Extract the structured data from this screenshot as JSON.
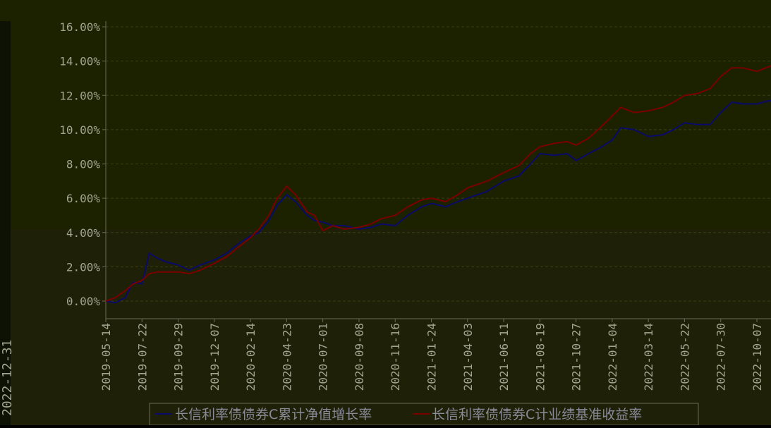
{
  "colors": {
    "background_top": "#1c2200",
    "background_bottom": "#1e2108",
    "left_strip": "#0d1204",
    "grid": "#3a3f12",
    "axis": "#6a6a58",
    "tick_text": "#a2a690",
    "legend_text": "#8a8a9a",
    "series_nav": "#0a0a6a",
    "series_bench": "#7a0000"
  },
  "left_strip": {
    "date_label": "2022-12-31"
  },
  "chart_data": {
    "type": "line",
    "title": "",
    "xlabel": "",
    "ylabel": "",
    "ylim": [
      -0.01,
      0.165
    ],
    "y_ticks": [
      0.0,
      0.02,
      0.04,
      0.06,
      0.08,
      0.1,
      0.12,
      0.14,
      0.16
    ],
    "y_tick_labels": [
      "0.00%",
      "2.00%",
      "4.00%",
      "6.00%",
      "8.00%",
      "10.00%",
      "12.00%",
      "14.00%",
      "16.00%"
    ],
    "x_tick_labels": [
      "2019-05-14",
      "2019-07-22",
      "2019-09-29",
      "2019-12-07",
      "2020-02-14",
      "2020-04-23",
      "2020-07-01",
      "2020-09-08",
      "2020-11-16",
      "2021-01-24",
      "2021-04-03",
      "2021-06-11",
      "2021-08-19",
      "2021-10-27",
      "2022-01-04",
      "2022-03-14",
      "2022-05-22",
      "2022-07-30",
      "2022-10-07"
    ],
    "grid": true,
    "legend_position": "bottom",
    "x": [
      "2019-05-14",
      "2019-06-01",
      "2019-06-20",
      "2019-07-05",
      "2019-07-22",
      "2019-08-05",
      "2019-08-20",
      "2019-09-05",
      "2019-09-29",
      "2019-10-20",
      "2019-11-10",
      "2019-12-07",
      "2019-12-31",
      "2020-01-20",
      "2020-02-14",
      "2020-03-01",
      "2020-03-20",
      "2020-04-05",
      "2020-04-23",
      "2020-05-10",
      "2020-06-01",
      "2020-06-15",
      "2020-07-01",
      "2020-07-20",
      "2020-08-10",
      "2020-09-08",
      "2020-10-01",
      "2020-10-20",
      "2020-11-16",
      "2020-12-10",
      "2021-01-05",
      "2021-01-24",
      "2021-02-20",
      "2021-03-15",
      "2021-04-03",
      "2021-05-10",
      "2021-06-11",
      "2021-07-10",
      "2021-08-01",
      "2021-08-19",
      "2021-09-15",
      "2021-10-10",
      "2021-10-27",
      "2021-11-20",
      "2021-12-15",
      "2022-01-04",
      "2022-01-20",
      "2022-02-15",
      "2022-03-14",
      "2022-04-10",
      "2022-05-01",
      "2022-05-22",
      "2022-06-15",
      "2022-07-10",
      "2022-07-30",
      "2022-08-20",
      "2022-09-10",
      "2022-10-07",
      "2022-11-01",
      "2022-12-10"
    ],
    "series": [
      {
        "name": "长信利率债债券C累计净值增长率",
        "color": "#0a0a6a",
        "values": [
          0.0,
          -0.001,
          0.002,
          0.011,
          0.01,
          0.028,
          0.025,
          0.023,
          0.021,
          0.018,
          0.021,
          0.024,
          0.028,
          0.033,
          0.038,
          0.04,
          0.047,
          0.056,
          0.062,
          0.058,
          0.05,
          0.047,
          0.046,
          0.044,
          0.044,
          0.042,
          0.043,
          0.045,
          0.044,
          0.05,
          0.055,
          0.057,
          0.055,
          0.058,
          0.06,
          0.064,
          0.07,
          0.073,
          0.08,
          0.086,
          0.085,
          0.086,
          0.082,
          0.086,
          0.09,
          0.094,
          0.101,
          0.1,
          0.096,
          0.097,
          0.1,
          0.104,
          0.103,
          0.103,
          0.11,
          0.116,
          0.115,
          0.115,
          0.117,
          0.118
        ]
      },
      {
        "name": "长信利率债债券C计业绩基准收益率",
        "color": "#7a0000",
        "values": [
          0.0,
          0.002,
          0.006,
          0.01,
          0.012,
          0.016,
          0.017,
          0.017,
          0.017,
          0.016,
          0.018,
          0.022,
          0.026,
          0.031,
          0.037,
          0.042,
          0.05,
          0.06,
          0.067,
          0.062,
          0.052,
          0.05,
          0.041,
          0.044,
          0.042,
          0.043,
          0.045,
          0.048,
          0.05,
          0.055,
          0.059,
          0.06,
          0.058,
          0.062,
          0.066,
          0.07,
          0.075,
          0.079,
          0.086,
          0.09,
          0.092,
          0.093,
          0.091,
          0.095,
          0.102,
          0.108,
          0.113,
          0.11,
          0.111,
          0.113,
          0.116,
          0.12,
          0.121,
          0.124,
          0.131,
          0.136,
          0.136,
          0.134,
          0.137,
          0.141
        ]
      }
    ]
  }
}
